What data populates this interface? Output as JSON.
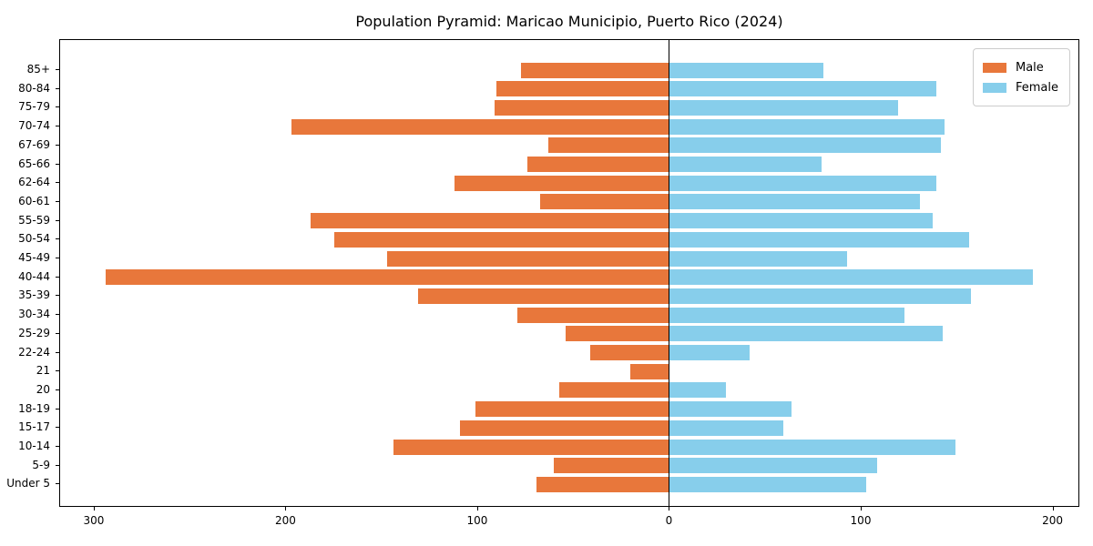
{
  "title": "Population Pyramid: Maricao Municipio, Puerto Rico (2024)",
  "legend": {
    "male_label": "Male",
    "female_label": "Female"
  },
  "colors": {
    "male": "#E8773B",
    "female": "#87CEEB",
    "axis": "#000000"
  },
  "x_axis": {
    "tick_values": [
      -300,
      -200,
      -100,
      0,
      100,
      200
    ],
    "tick_labels": [
      "300",
      "200",
      "100",
      "0",
      "100",
      "200"
    ]
  },
  "chart_data": {
    "type": "bar",
    "orientation": "horizontal-pyramid",
    "title": "Population Pyramid: Maricao Municipio, Puerto Rico (2024)",
    "categories_top_to_bottom": [
      "85+",
      "80-84",
      "75-79",
      "70-74",
      "67-69",
      "65-66",
      "62-64",
      "60-61",
      "55-59",
      "50-54",
      "45-49",
      "40-44",
      "35-39",
      "30-34",
      "25-29",
      "22-24",
      "21",
      "20",
      "18-19",
      "15-17",
      "10-14",
      "5-9",
      "Under 5"
    ],
    "series": [
      {
        "name": "Male",
        "side": "left",
        "color": "#E8773B",
        "values": [
          77,
          90,
          91,
          197,
          63,
          74,
          112,
          67,
          187,
          175,
          147,
          294,
          131,
          79,
          54,
          41,
          20,
          57,
          101,
          109,
          144,
          60,
          69
        ]
      },
      {
        "name": "Female",
        "side": "right",
        "color": "#87CEEB",
        "values": [
          81,
          140,
          120,
          144,
          142,
          80,
          140,
          131,
          138,
          157,
          93,
          190,
          158,
          123,
          143,
          42,
          0,
          30,
          64,
          60,
          150,
          109,
          103
        ]
      }
    ],
    "xlim": [
      -318,
      214
    ],
    "grid": false,
    "legend_position": "upper-right-inside",
    "zero_line": true
  }
}
